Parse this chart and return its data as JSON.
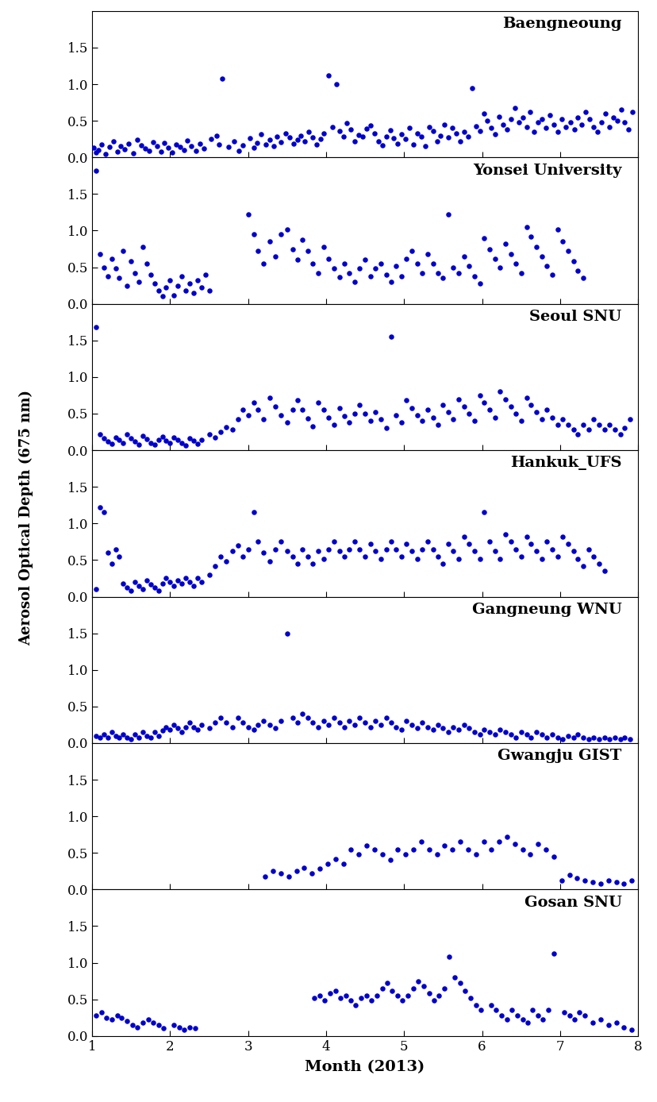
{
  "stations": [
    "Baengneoung",
    "Yonsei University",
    "Seoul SNU",
    "Hankuk_UFS",
    "Gangneung WNU",
    "Gwangju GIST",
    "Gosan SNU"
  ],
  "dot_color": "#0000CC",
  "dot_size": 22,
  "xlabel": "Month (2013)",
  "ylabel": "Aerosol Optical Depth (675 nm)",
  "xlim": [
    1,
    8
  ],
  "ylim": [
    0.0,
    2.0
  ],
  "yticks": [
    0.0,
    0.5,
    1.0,
    1.5
  ],
  "xticks": [
    1,
    2,
    3,
    4,
    5,
    6,
    7,
    8
  ],
  "figsize": [
    8.29,
    13.88
  ],
  "dpi": 100,
  "font_family": "DejaVu Serif",
  "data": {
    "Baengneoung": {
      "x": [
        1.02,
        1.05,
        1.08,
        1.12,
        1.17,
        1.22,
        1.27,
        1.32,
        1.37,
        1.42,
        1.47,
        1.53,
        1.58,
        1.63,
        1.68,
        1.73,
        1.78,
        1.83,
        1.88,
        1.93,
        1.98,
        2.03,
        2.08,
        2.13,
        2.18,
        2.22,
        2.27,
        2.33,
        2.38,
        2.43,
        2.53,
        2.6,
        2.63,
        2.67,
        2.75,
        2.82,
        2.88,
        2.93,
        3.02,
        3.07,
        3.12,
        3.17,
        3.23,
        3.28,
        3.33,
        3.37,
        3.42,
        3.48,
        3.53,
        3.58,
        3.63,
        3.68,
        3.73,
        3.78,
        3.83,
        3.88,
        3.93,
        3.97,
        4.03,
        4.08,
        4.13,
        4.17,
        4.22,
        4.27,
        4.32,
        4.37,
        4.42,
        4.47,
        4.52,
        4.57,
        4.62,
        4.67,
        4.72,
        4.77,
        4.82,
        4.87,
        4.92,
        4.97,
        5.02,
        5.07,
        5.12,
        5.17,
        5.22,
        5.27,
        5.32,
        5.37,
        5.42,
        5.47,
        5.52,
        5.57,
        5.62,
        5.67,
        5.72,
        5.77,
        5.82,
        5.87,
        5.92,
        5.97,
        6.02,
        6.07,
        6.12,
        6.17,
        6.22,
        6.27,
        6.32,
        6.37,
        6.42,
        6.47,
        6.52,
        6.57,
        6.62,
        6.67,
        6.72,
        6.77,
        6.82,
        6.87,
        6.92,
        6.97,
        7.02,
        7.07,
        7.13,
        7.18,
        7.23,
        7.28,
        7.33,
        7.38,
        7.43,
        7.48,
        7.53,
        7.58,
        7.63,
        7.68,
        7.73,
        7.78,
        7.83,
        7.88,
        7.93
      ],
      "y": [
        0.13,
        0.07,
        0.1,
        0.18,
        0.05,
        0.14,
        0.22,
        0.08,
        0.16,
        0.11,
        0.19,
        0.06,
        0.24,
        0.17,
        0.12,
        0.09,
        0.21,
        0.15,
        0.08,
        0.2,
        0.13,
        0.07,
        0.18,
        0.14,
        0.1,
        0.23,
        0.16,
        0.09,
        0.19,
        0.12,
        0.25,
        0.3,
        0.18,
        1.08,
        0.14,
        0.22,
        0.09,
        0.17,
        0.26,
        0.13,
        0.2,
        0.32,
        0.18,
        0.24,
        0.15,
        0.28,
        0.21,
        0.33,
        0.27,
        0.19,
        0.24,
        0.3,
        0.22,
        0.35,
        0.27,
        0.18,
        0.25,
        0.33,
        1.12,
        0.42,
        1.0,
        0.36,
        0.29,
        0.47,
        0.38,
        0.22,
        0.31,
        0.28,
        0.39,
        0.44,
        0.33,
        0.22,
        0.17,
        0.28,
        0.37,
        0.26,
        0.19,
        0.32,
        0.25,
        0.4,
        0.18,
        0.33,
        0.28,
        0.15,
        0.42,
        0.36,
        0.22,
        0.3,
        0.45,
        0.27,
        0.4,
        0.33,
        0.22,
        0.35,
        0.28,
        0.95,
        0.43,
        0.36,
        0.6,
        0.5,
        0.4,
        0.32,
        0.56,
        0.45,
        0.38,
        0.52,
        0.68,
        0.48,
        0.55,
        0.42,
        0.62,
        0.35,
        0.48,
        0.52,
        0.4,
        0.58,
        0.45,
        0.35,
        0.52,
        0.42,
        0.48,
        0.38,
        0.55,
        0.45,
        0.62,
        0.52,
        0.42,
        0.35,
        0.48,
        0.6,
        0.42,
        0.55,
        0.5,
        0.65,
        0.48,
        0.38,
        0.62
      ]
    },
    "Yonsei University": {
      "x": [
        1.05,
        1.1,
        1.15,
        1.2,
        1.25,
        1.3,
        1.35,
        1.4,
        1.45,
        1.5,
        1.55,
        1.6,
        1.65,
        1.7,
        1.75,
        1.8,
        1.85,
        1.9,
        1.95,
        2.0,
        2.05,
        2.1,
        2.15,
        2.2,
        2.25,
        2.3,
        2.35,
        2.4,
        2.45,
        2.5,
        3.0,
        3.07,
        3.13,
        3.2,
        3.28,
        3.35,
        3.42,
        3.5,
        3.57,
        3.63,
        3.7,
        3.77,
        3.83,
        3.9,
        3.97,
        4.03,
        4.1,
        4.17,
        4.23,
        4.3,
        4.37,
        4.43,
        4.5,
        4.57,
        4.63,
        4.7,
        4.77,
        4.83,
        4.9,
        4.97,
        5.03,
        5.1,
        5.17,
        5.23,
        5.3,
        5.37,
        5.43,
        5.5,
        5.57,
        5.63,
        5.7,
        5.77,
        5.83,
        5.9,
        5.97,
        6.03,
        6.1,
        6.17,
        6.23,
        6.3,
        6.37,
        6.43,
        6.5,
        6.57,
        6.63,
        6.7,
        6.77,
        6.83,
        6.9,
        6.97,
        7.03,
        7.1,
        7.17,
        7.23,
        7.3
      ],
      "y": [
        1.82,
        0.68,
        0.5,
        0.38,
        0.62,
        0.48,
        0.35,
        0.72,
        0.25,
        0.58,
        0.42,
        0.3,
        0.78,
        0.55,
        0.4,
        0.28,
        0.18,
        0.1,
        0.22,
        0.32,
        0.12,
        0.25,
        0.38,
        0.18,
        0.28,
        0.15,
        0.32,
        0.22,
        0.4,
        0.18,
        1.22,
        0.95,
        0.72,
        0.55,
        0.85,
        0.65,
        0.95,
        1.02,
        0.75,
        0.6,
        0.88,
        0.72,
        0.55,
        0.42,
        0.78,
        0.62,
        0.48,
        0.36,
        0.55,
        0.42,
        0.3,
        0.48,
        0.6,
        0.38,
        0.48,
        0.55,
        0.4,
        0.3,
        0.52,
        0.38,
        0.62,
        0.72,
        0.55,
        0.42,
        0.68,
        0.55,
        0.42,
        0.35,
        1.22,
        0.5,
        0.42,
        0.65,
        0.52,
        0.38,
        0.28,
        0.9,
        0.75,
        0.62,
        0.5,
        0.82,
        0.68,
        0.55,
        0.42,
        1.05,
        0.92,
        0.78,
        0.65,
        0.52,
        0.4,
        1.02,
        0.85,
        0.72,
        0.58,
        0.45,
        0.35
      ]
    },
    "Seoul SNU": {
      "x": [
        1.05,
        1.1,
        1.15,
        1.2,
        1.25,
        1.3,
        1.35,
        1.4,
        1.45,
        1.5,
        1.55,
        1.6,
        1.65,
        1.7,
        1.75,
        1.8,
        1.85,
        1.9,
        1.95,
        2.0,
        2.05,
        2.1,
        2.15,
        2.2,
        2.25,
        2.3,
        2.35,
        2.4,
        2.5,
        2.58,
        2.65,
        2.72,
        2.8,
        2.87,
        2.93,
        3.0,
        3.07,
        3.13,
        3.2,
        3.28,
        3.35,
        3.42,
        3.5,
        3.57,
        3.63,
        3.7,
        3.77,
        3.83,
        3.9,
        3.97,
        4.03,
        4.1,
        4.17,
        4.23,
        4.3,
        4.37,
        4.43,
        4.5,
        4.57,
        4.63,
        4.7,
        4.77,
        4.83,
        4.9,
        4.97,
        5.03,
        5.1,
        5.17,
        5.23,
        5.3,
        5.37,
        5.43,
        5.5,
        5.57,
        5.63,
        5.7,
        5.77,
        5.83,
        5.9,
        5.97,
        6.03,
        6.1,
        6.17,
        6.23,
        6.3,
        6.37,
        6.43,
        6.5,
        6.57,
        6.63,
        6.7,
        6.77,
        6.83,
        6.9,
        6.97,
        7.03,
        7.1,
        7.17,
        7.23,
        7.3,
        7.37,
        7.43,
        7.5,
        7.57,
        7.63,
        7.7,
        7.77,
        7.83,
        7.9
      ],
      "y": [
        1.68,
        0.22,
        0.16,
        0.12,
        0.09,
        0.18,
        0.14,
        0.1,
        0.22,
        0.16,
        0.12,
        0.08,
        0.2,
        0.15,
        0.1,
        0.08,
        0.14,
        0.19,
        0.13,
        0.1,
        0.17,
        0.14,
        0.1,
        0.07,
        0.16,
        0.13,
        0.09,
        0.14,
        0.22,
        0.17,
        0.25,
        0.32,
        0.28,
        0.42,
        0.55,
        0.48,
        0.65,
        0.55,
        0.42,
        0.72,
        0.6,
        0.48,
        0.38,
        0.55,
        0.68,
        0.55,
        0.43,
        0.33,
        0.65,
        0.55,
        0.45,
        0.35,
        0.58,
        0.47,
        0.38,
        0.5,
        0.62,
        0.5,
        0.4,
        0.52,
        0.42,
        0.3,
        1.55,
        0.48,
        0.38,
        0.68,
        0.58,
        0.48,
        0.4,
        0.55,
        0.45,
        0.35,
        0.62,
        0.52,
        0.42,
        0.7,
        0.6,
        0.5,
        0.4,
        0.75,
        0.65,
        0.55,
        0.45,
        0.8,
        0.7,
        0.6,
        0.5,
        0.4,
        0.72,
        0.62,
        0.52,
        0.42,
        0.55,
        0.45,
        0.35,
        0.42,
        0.35,
        0.28,
        0.22,
        0.35,
        0.28,
        0.42,
        0.35,
        0.28,
        0.35,
        0.28,
        0.22,
        0.3,
        0.42
      ]
    },
    "Hankuk_UFS": {
      "x": [
        1.05,
        1.1,
        1.15,
        1.2,
        1.25,
        1.3,
        1.35,
        1.4,
        1.45,
        1.5,
        1.55,
        1.6,
        1.65,
        1.7,
        1.75,
        1.8,
        1.85,
        1.9,
        1.95,
        2.0,
        2.05,
        2.1,
        2.15,
        2.2,
        2.25,
        2.3,
        2.35,
        2.4,
        2.5,
        2.58,
        2.65,
        2.72,
        2.8,
        2.87,
        2.93,
        3.0,
        3.07,
        3.13,
        3.2,
        3.28,
        3.35,
        3.42,
        3.5,
        3.57,
        3.63,
        3.7,
        3.77,
        3.83,
        3.9,
        3.97,
        4.03,
        4.1,
        4.17,
        4.23,
        4.3,
        4.37,
        4.43,
        4.5,
        4.57,
        4.63,
        4.7,
        4.77,
        4.83,
        4.9,
        4.97,
        5.03,
        5.1,
        5.17,
        5.23,
        5.3,
        5.37,
        5.43,
        5.5,
        5.57,
        5.63,
        5.7,
        5.77,
        5.83,
        5.9,
        5.97,
        6.03,
        6.1,
        6.17,
        6.23,
        6.3,
        6.37,
        6.43,
        6.5,
        6.57,
        6.63,
        6.7,
        6.77,
        6.83,
        6.9,
        6.97,
        7.03,
        7.1,
        7.17,
        7.23,
        7.3,
        7.37,
        7.43,
        7.5,
        7.57
      ],
      "y": [
        0.1,
        1.22,
        1.15,
        0.6,
        0.45,
        0.65,
        0.55,
        0.18,
        0.12,
        0.08,
        0.2,
        0.15,
        0.1,
        0.22,
        0.17,
        0.12,
        0.08,
        0.18,
        0.25,
        0.2,
        0.15,
        0.22,
        0.18,
        0.25,
        0.2,
        0.15,
        0.25,
        0.2,
        0.3,
        0.42,
        0.55,
        0.48,
        0.62,
        0.7,
        0.55,
        0.65,
        1.15,
        0.75,
        0.6,
        0.48,
        0.65,
        0.75,
        0.62,
        0.55,
        0.45,
        0.65,
        0.55,
        0.45,
        0.62,
        0.52,
        0.65,
        0.75,
        0.62,
        0.55,
        0.65,
        0.75,
        0.65,
        0.55,
        0.72,
        0.62,
        0.52,
        0.65,
        0.75,
        0.65,
        0.55,
        0.72,
        0.62,
        0.52,
        0.65,
        0.75,
        0.65,
        0.55,
        0.45,
        0.72,
        0.62,
        0.52,
        0.82,
        0.72,
        0.62,
        0.52,
        1.15,
        0.75,
        0.62,
        0.52,
        0.85,
        0.75,
        0.65,
        0.55,
        0.82,
        0.72,
        0.62,
        0.52,
        0.75,
        0.65,
        0.55,
        0.82,
        0.72,
        0.62,
        0.52,
        0.42,
        0.65,
        0.55,
        0.45,
        0.35
      ]
    },
    "Gangneung WNU": {
      "x": [
        1.05,
        1.1,
        1.15,
        1.2,
        1.25,
        1.3,
        1.35,
        1.4,
        1.45,
        1.5,
        1.55,
        1.6,
        1.65,
        1.7,
        1.75,
        1.8,
        1.85,
        1.9,
        1.95,
        2.0,
        2.05,
        2.1,
        2.15,
        2.2,
        2.25,
        2.3,
        2.35,
        2.4,
        2.5,
        2.58,
        2.65,
        2.72,
        2.8,
        2.87,
        2.93,
        3.0,
        3.07,
        3.13,
        3.2,
        3.28,
        3.35,
        3.42,
        3.5,
        3.57,
        3.63,
        3.7,
        3.77,
        3.83,
        3.9,
        3.97,
        4.03,
        4.1,
        4.17,
        4.23,
        4.3,
        4.37,
        4.43,
        4.5,
        4.57,
        4.63,
        4.7,
        4.77,
        4.83,
        4.9,
        4.97,
        5.03,
        5.1,
        5.17,
        5.23,
        5.3,
        5.37,
        5.43,
        5.5,
        5.57,
        5.63,
        5.7,
        5.77,
        5.83,
        5.9,
        5.97,
        6.03,
        6.1,
        6.17,
        6.23,
        6.3,
        6.37,
        6.43,
        6.5,
        6.57,
        6.63,
        6.7,
        6.77,
        6.83,
        6.9,
        6.97,
        7.03,
        7.1,
        7.17,
        7.23,
        7.3,
        7.37,
        7.43,
        7.5,
        7.57,
        7.63,
        7.7,
        7.77,
        7.83,
        7.9
      ],
      "y": [
        0.1,
        0.07,
        0.12,
        0.08,
        0.15,
        0.1,
        0.07,
        0.12,
        0.08,
        0.05,
        0.12,
        0.08,
        0.15,
        0.1,
        0.07,
        0.15,
        0.1,
        0.17,
        0.22,
        0.18,
        0.25,
        0.2,
        0.15,
        0.22,
        0.28,
        0.22,
        0.18,
        0.25,
        0.2,
        0.28,
        0.35,
        0.28,
        0.22,
        0.35,
        0.28,
        0.22,
        0.18,
        0.25,
        0.3,
        0.25,
        0.2,
        0.3,
        1.5,
        0.35,
        0.28,
        0.4,
        0.35,
        0.28,
        0.22,
        0.3,
        0.25,
        0.35,
        0.28,
        0.22,
        0.3,
        0.25,
        0.35,
        0.28,
        0.22,
        0.3,
        0.25,
        0.35,
        0.28,
        0.22,
        0.18,
        0.3,
        0.25,
        0.2,
        0.28,
        0.22,
        0.18,
        0.25,
        0.2,
        0.15,
        0.22,
        0.18,
        0.25,
        0.2,
        0.15,
        0.12,
        0.18,
        0.15,
        0.12,
        0.18,
        0.15,
        0.12,
        0.08,
        0.15,
        0.12,
        0.08,
        0.15,
        0.12,
        0.08,
        0.12,
        0.08,
        0.05,
        0.1,
        0.07,
        0.12,
        0.08,
        0.05,
        0.08,
        0.05,
        0.08,
        0.05,
        0.08,
        0.05,
        0.08,
        0.05
      ]
    },
    "Gwangju GIST": {
      "x": [
        3.22,
        3.32,
        3.42,
        3.52,
        3.62,
        3.72,
        3.82,
        3.92,
        4.02,
        4.12,
        4.22,
        4.32,
        4.42,
        4.52,
        4.62,
        4.72,
        4.82,
        4.92,
        5.02,
        5.12,
        5.22,
        5.32,
        5.42,
        5.52,
        5.62,
        5.72,
        5.82,
        5.92,
        6.02,
        6.12,
        6.22,
        6.32,
        6.42,
        6.52,
        6.62,
        6.72,
        6.82,
        6.92,
        7.02,
        7.12,
        7.22,
        7.32,
        7.42,
        7.52,
        7.62,
        7.72,
        7.82,
        7.92
      ],
      "y": [
        0.18,
        0.25,
        0.22,
        0.18,
        0.25,
        0.3,
        0.22,
        0.28,
        0.35,
        0.42,
        0.35,
        0.55,
        0.48,
        0.6,
        0.55,
        0.48,
        0.4,
        0.55,
        0.48,
        0.55,
        0.65,
        0.55,
        0.48,
        0.6,
        0.55,
        0.65,
        0.55,
        0.48,
        0.65,
        0.55,
        0.65,
        0.72,
        0.62,
        0.55,
        0.48,
        0.62,
        0.55,
        0.45,
        0.12,
        0.2,
        0.15,
        0.12,
        0.1,
        0.08,
        0.12,
        0.1,
        0.08,
        0.12
      ]
    },
    "Gosan SNU": {
      "x": [
        1.05,
        1.12,
        1.18,
        1.25,
        1.32,
        1.38,
        1.45,
        1.52,
        1.58,
        1.65,
        1.72,
        1.78,
        1.85,
        1.92,
        2.05,
        2.12,
        2.18,
        2.25,
        2.32,
        3.85,
        3.92,
        3.98,
        4.05,
        4.12,
        4.18,
        4.25,
        4.32,
        4.38,
        4.45,
        4.52,
        4.58,
        4.65,
        4.72,
        4.78,
        4.85,
        4.92,
        4.98,
        5.05,
        5.12,
        5.18,
        5.25,
        5.32,
        5.38,
        5.45,
        5.52,
        5.58,
        5.65,
        5.72,
        5.78,
        5.85,
        5.92,
        5.98,
        6.12,
        6.18,
        6.25,
        6.32,
        6.38,
        6.45,
        6.52,
        6.58,
        6.65,
        6.72,
        6.78,
        6.85,
        6.92,
        7.05,
        7.12,
        7.18,
        7.25,
        7.32,
        7.42,
        7.52,
        7.62,
        7.72,
        7.82,
        7.92
      ],
      "y": [
        0.28,
        0.32,
        0.25,
        0.22,
        0.28,
        0.25,
        0.2,
        0.15,
        0.12,
        0.18,
        0.22,
        0.18,
        0.15,
        0.1,
        0.15,
        0.12,
        0.08,
        0.12,
        0.1,
        0.52,
        0.55,
        0.48,
        0.58,
        0.62,
        0.52,
        0.55,
        0.48,
        0.42,
        0.52,
        0.55,
        0.48,
        0.55,
        0.65,
        0.72,
        0.62,
        0.55,
        0.48,
        0.55,
        0.65,
        0.75,
        0.68,
        0.58,
        0.48,
        0.55,
        0.65,
        1.08,
        0.8,
        0.72,
        0.62,
        0.52,
        0.42,
        0.35,
        0.42,
        0.35,
        0.28,
        0.22,
        0.35,
        0.28,
        0.22,
        0.18,
        0.35,
        0.28,
        0.22,
        0.35,
        1.12,
        0.32,
        0.28,
        0.22,
        0.32,
        0.28,
        0.18,
        0.22,
        0.15,
        0.18,
        0.12,
        0.08
      ]
    }
  }
}
